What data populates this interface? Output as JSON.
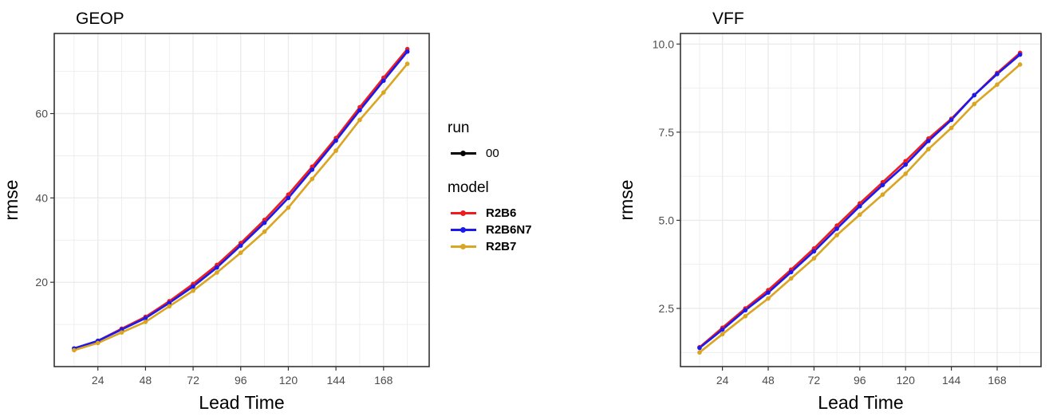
{
  "chart_data": [
    {
      "type": "line",
      "title": "GEOP",
      "xlabel": "Lead Time",
      "ylabel": "rmse",
      "x": [
        12,
        24,
        36,
        48,
        60,
        72,
        84,
        96,
        108,
        120,
        132,
        144,
        156,
        168,
        180
      ],
      "xticks": [
        24,
        48,
        72,
        96,
        120,
        144,
        168
      ],
      "xtick_labels": [
        "24",
        "48",
        "72",
        "96",
        "120",
        "144",
        "168"
      ],
      "yticks": [
        20,
        40,
        60
      ],
      "ytick_labels": [
        "20",
        "40",
        "60"
      ],
      "xlim": [
        2,
        191
      ],
      "ylim": [
        0,
        79
      ],
      "grid": true,
      "series": [
        {
          "name": "R2B6",
          "color": "#ee1c1c",
          "values": [
            4.3,
            6.1,
            9.0,
            11.8,
            15.5,
            19.6,
            24.1,
            29.3,
            34.8,
            40.8,
            47.4,
            54.2,
            61.5,
            68.5,
            75.3
          ]
        },
        {
          "name": "R2B6N7",
          "color": "#1a1aee",
          "values": [
            4.3,
            6.1,
            8.8,
            11.5,
            15.1,
            19.0,
            23.5,
            28.7,
            34.1,
            40.0,
            46.7,
            53.6,
            60.8,
            67.8,
            74.7
          ]
        },
        {
          "name": "R2B7",
          "color": "#daa520",
          "values": [
            3.9,
            5.6,
            8.1,
            10.6,
            14.3,
            18.0,
            22.3,
            27.0,
            32.0,
            37.7,
            44.5,
            51.2,
            58.5,
            65.0,
            71.8
          ]
        }
      ]
    },
    {
      "type": "line",
      "title": "VFF",
      "xlabel": "Lead Time",
      "ylabel": "rmse",
      "x": [
        12,
        24,
        36,
        48,
        60,
        72,
        84,
        96,
        108,
        120,
        132,
        144,
        156,
        168,
        180
      ],
      "xticks": [
        24,
        48,
        72,
        96,
        120,
        144,
        168
      ],
      "xtick_labels": [
        "24",
        "48",
        "72",
        "96",
        "120",
        "144",
        "168"
      ],
      "yticks": [
        2.5,
        5.0,
        7.5,
        10.0
      ],
      "ytick_labels": [
        "2.5",
        "5.0",
        "7.5",
        "10.0"
      ],
      "xlim": [
        2,
        191
      ],
      "ylim": [
        0.85,
        10.3
      ],
      "grid": true,
      "series": [
        {
          "name": "R2B6",
          "color": "#ee1c1c",
          "values": [
            1.4,
            1.95,
            2.5,
            3.02,
            3.6,
            4.2,
            4.85,
            5.48,
            6.08,
            6.68,
            7.32,
            7.88,
            8.55,
            9.18,
            9.75
          ]
        },
        {
          "name": "R2B6N7",
          "color": "#1a1aee",
          "values": [
            1.38,
            1.9,
            2.45,
            2.95,
            3.53,
            4.12,
            4.76,
            5.4,
            6.0,
            6.58,
            7.25,
            7.85,
            8.55,
            9.15,
            9.7
          ]
        },
        {
          "name": "R2B7",
          "color": "#daa520",
          "values": [
            1.25,
            1.77,
            2.28,
            2.78,
            3.35,
            3.92,
            4.58,
            5.16,
            5.73,
            6.32,
            7.02,
            7.62,
            8.3,
            8.85,
            9.42
          ]
        }
      ]
    }
  ],
  "legend": {
    "run_title": "run",
    "run_items": [
      {
        "label": "00",
        "color": "#000000"
      }
    ],
    "model_title": "model",
    "model_items": [
      {
        "label": "R2B6",
        "color": "#ee1c1c"
      },
      {
        "label": "R2B6N7",
        "color": "#1a1aee"
      },
      {
        "label": "R2B7",
        "color": "#daa520"
      }
    ]
  },
  "colors": {
    "grid": "#ebebeb",
    "frame": "#333333",
    "tick_text": "#4d4d4d"
  }
}
